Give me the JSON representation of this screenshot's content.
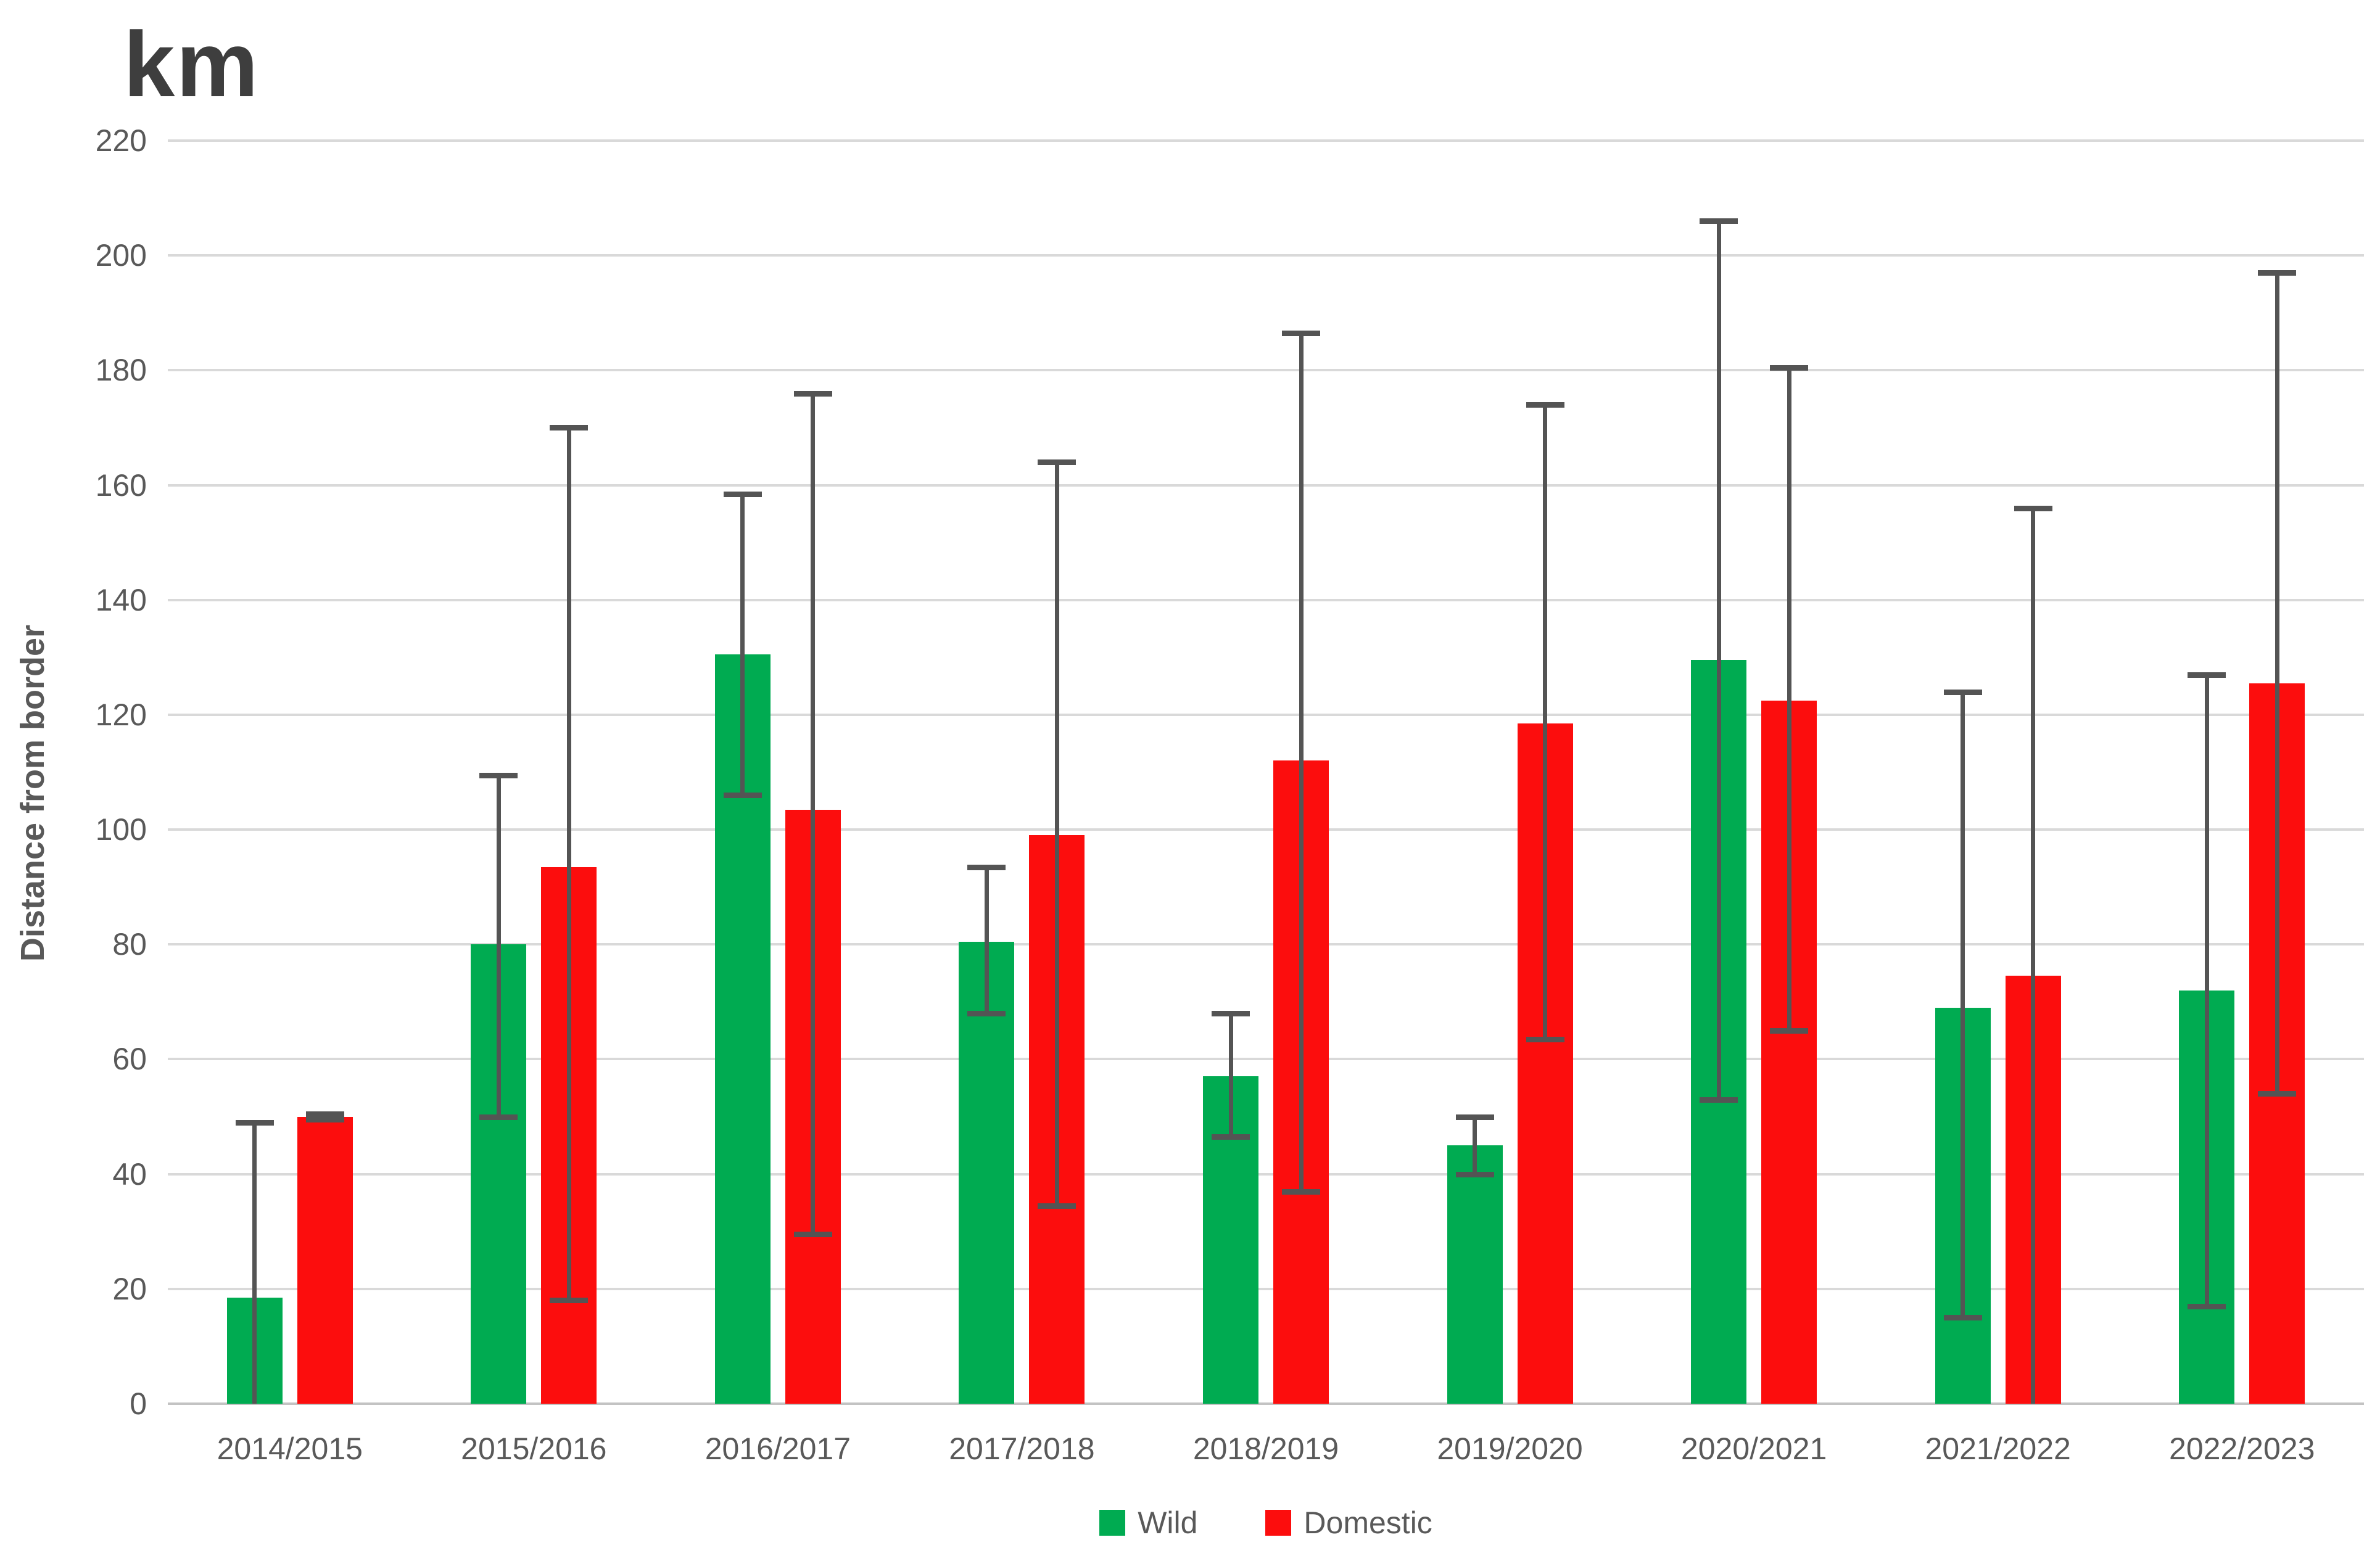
{
  "chart_data": {
    "type": "bar",
    "title": "km",
    "xlabel": "",
    "ylabel": "Distance from border",
    "ylim": [
      0,
      220
    ],
    "ytick_step": 20,
    "yticks": [
      0,
      20,
      40,
      60,
      80,
      100,
      120,
      140,
      160,
      180,
      200,
      220
    ],
    "grid": true,
    "legend_position": "bottom-center",
    "categories": [
      "2014/2015",
      "2015/2016",
      "2016/2017",
      "2017/2018",
      "2018/2019",
      "2019/2020",
      "2020/2021",
      "2021/2022",
      "2022/2023"
    ],
    "series": [
      {
        "name": "Wild",
        "color": "#00AB51",
        "values": [
          18.5,
          80,
          130.5,
          80.5,
          57,
          45,
          129.5,
          69,
          72
        ],
        "err_low": [
          0,
          50,
          106,
          68,
          46.5,
          40,
          53,
          15,
          17
        ],
        "err_high": [
          49,
          109.5,
          158.5,
          93.5,
          68,
          50,
          206,
          124,
          127
        ],
        "cap_low": [
          false,
          true,
          true,
          true,
          true,
          true,
          true,
          true,
          true
        ]
      },
      {
        "name": "Domestic",
        "color": "#FC0D0D",
        "values": [
          50,
          93.5,
          103.5,
          99,
          112,
          118.5,
          122.5,
          74.5,
          125.5
        ],
        "err_low": [
          49.5,
          18,
          29.5,
          34.5,
          37,
          63.5,
          65,
          0,
          54
        ],
        "err_high": [
          50.5,
          170,
          176,
          164,
          186.5,
          174,
          180.5,
          156,
          197
        ],
        "cap_low": [
          true,
          true,
          true,
          true,
          true,
          true,
          true,
          false,
          true
        ]
      }
    ],
    "colors": {
      "gridline": "#D9D9D9",
      "zero_line": "#C3C3C3",
      "error_bar": "#545454",
      "tick_text": "#595959",
      "title_text": "#3E3E3E"
    }
  }
}
